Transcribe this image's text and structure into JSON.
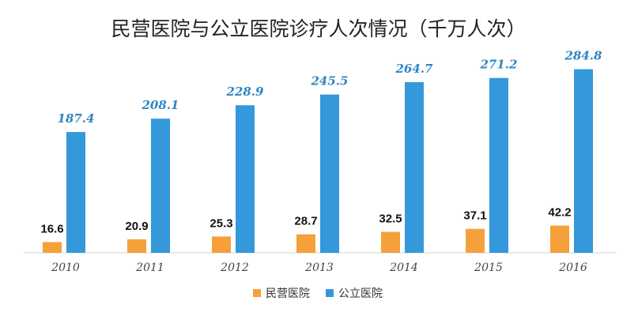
{
  "chart_data": {
    "type": "bar",
    "title": "民营医院与公立医院诊疗人次情况（千万人次）",
    "categories": [
      "2010",
      "2011",
      "2012",
      "2013",
      "2014",
      "2015",
      "2016"
    ],
    "series": [
      {
        "name": "民营医院",
        "color": "#F5A03A",
        "values": [
          16.6,
          20.9,
          25.3,
          28.7,
          32.5,
          37.1,
          42.2
        ]
      },
      {
        "name": "公立医院",
        "color": "#3498DB",
        "values": [
          187.4,
          208.1,
          228.9,
          245.5,
          264.7,
          271.2,
          284.8
        ]
      }
    ],
    "value_label_color_public": "#2E86C1",
    "ylim": [
      0,
      300
    ],
    "grid": false,
    "legend_position": "bottom"
  }
}
